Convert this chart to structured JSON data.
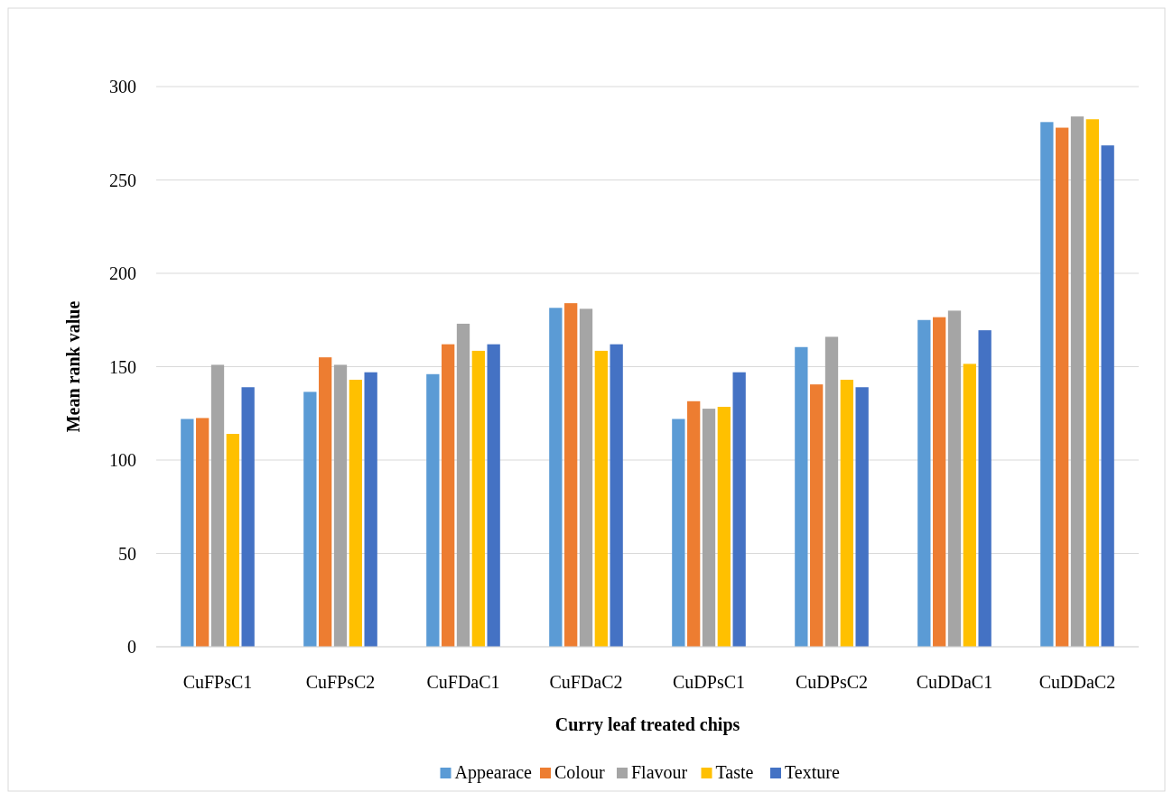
{
  "chart_data": {
    "type": "bar",
    "xlabel": "Curry leaf treated chips",
    "ylabel": "Mean rank value",
    "categories": [
      "CuFPsC1",
      "CuFPsC2",
      "CuFDaC1",
      "CuFDaC2",
      "CuDPsC1",
      "CuDPsC2",
      "CuDDaC1",
      "CuDDaC2"
    ],
    "series": [
      {
        "name": "Appearace",
        "color": "#5b9bd5",
        "values": [
          122,
          136.5,
          146,
          181.5,
          122,
          160.5,
          175,
          281
        ]
      },
      {
        "name": "Colour",
        "color": "#ed7d31",
        "values": [
          122.5,
          155,
          162,
          184,
          131.5,
          140.5,
          176.5,
          278
        ]
      },
      {
        "name": "Flavour",
        "color": "#a5a5a5",
        "values": [
          151,
          151,
          173,
          181,
          127.5,
          166,
          180,
          284
        ]
      },
      {
        "name": "Taste",
        "color": "#ffc000",
        "values": [
          114,
          143,
          158.5,
          158.5,
          128.5,
          143,
          151.5,
          282.5
        ]
      },
      {
        "name": "Texture",
        "color": "#4472c4",
        "values": [
          139,
          147,
          162,
          162,
          147,
          139,
          169.5,
          268.5
        ]
      }
    ],
    "ylim": [
      0,
      300
    ],
    "yticks": [
      0,
      50,
      100,
      150,
      200,
      250,
      300
    ],
    "grid": "y",
    "legend": "bottom"
  }
}
